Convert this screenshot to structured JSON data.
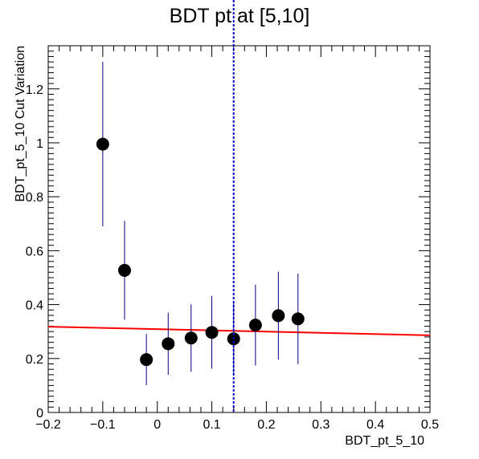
{
  "chart_data": {
    "type": "scatter",
    "title": "BDT pt at [5,10]",
    "xlabel": "BDT_pt_5_10",
    "ylabel": "BDT_pt_5_10 Cut Variation",
    "xlim": [
      -0.2,
      0.5
    ],
    "ylim": [
      0,
      1.36
    ],
    "x_ticks": [
      "−0.2",
      "−0.1",
      "0",
      "0.1",
      "0.2",
      "0.3",
      "0.4",
      "0.5"
    ],
    "y_ticks": [
      "0",
      "0.2",
      "0.4",
      "0.6",
      "0.8",
      "1",
      "1.2"
    ],
    "grid": false,
    "points": [
      {
        "x": -0.1,
        "y": 0.995,
        "err": 0.305
      },
      {
        "x": -0.06,
        "y": 0.527,
        "err": 0.183
      },
      {
        "x": -0.02,
        "y": 0.196,
        "err": 0.095
      },
      {
        "x": 0.02,
        "y": 0.255,
        "err": 0.115
      },
      {
        "x": 0.062,
        "y": 0.276,
        "err": 0.125
      },
      {
        "x": 0.1,
        "y": 0.297,
        "err": 0.135
      },
      {
        "x": 0.14,
        "y": 0.273,
        "err": 0.132
      },
      {
        "x": 0.18,
        "y": 0.324,
        "err": 0.15
      },
      {
        "x": 0.222,
        "y": 0.359,
        "err": 0.163
      },
      {
        "x": 0.258,
        "y": 0.347,
        "err": 0.168
      }
    ],
    "fit_line": {
      "x": [
        -0.2,
        0.5
      ],
      "y": [
        0.318,
        0.286
      ],
      "color": "#ff0000"
    },
    "cut_line": {
      "x": 0.14,
      "color": "#0000cc"
    },
    "marker_color": "#000000",
    "errorbar_color": "#000080"
  }
}
